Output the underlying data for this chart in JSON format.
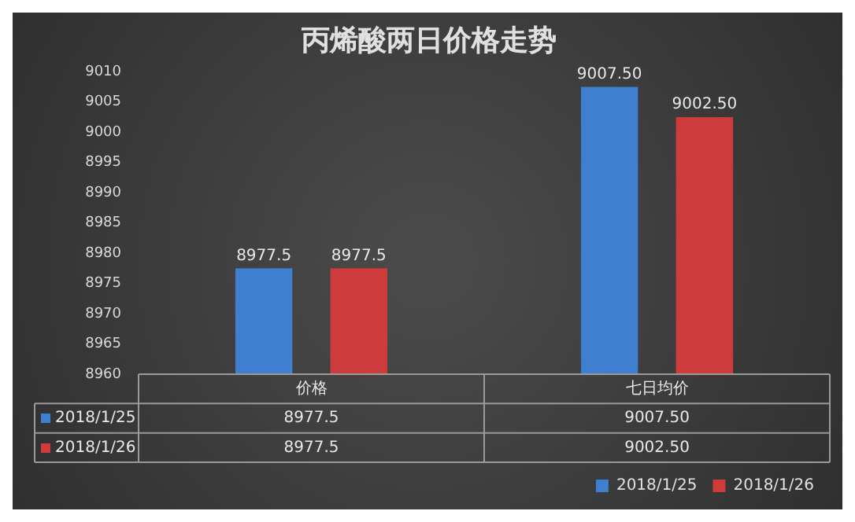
{
  "chart_data": {
    "type": "bar",
    "title": "丙烯酸两日价格走势",
    "categories": [
      "价格",
      "七日均价"
    ],
    "series": [
      {
        "name": "2018/1/25",
        "color": "#3f7fcf",
        "values": [
          8977.5,
          9007.5
        ],
        "value_labels": [
          "8977.5",
          "9007.50"
        ]
      },
      {
        "name": "2018/1/26",
        "color": "#cf3b3b",
        "values": [
          8977.5,
          9002.5
        ],
        "value_labels": [
          "8977.5",
          "9002.50"
        ]
      }
    ],
    "ylim": [
      8960,
      9010
    ],
    "yticks": [
      8960,
      8965,
      8970,
      8975,
      8980,
      8985,
      8990,
      8995,
      9000,
      9005,
      9010
    ],
    "grid": false,
    "legend": "bottom"
  }
}
